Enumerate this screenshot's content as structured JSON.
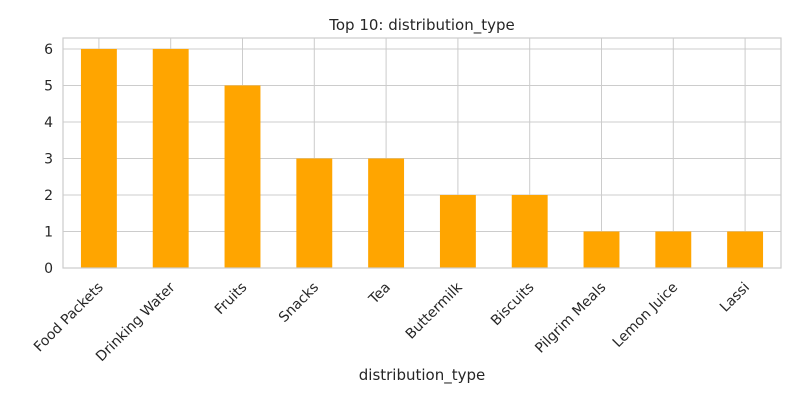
{
  "chart_data": {
    "type": "bar",
    "title": "Top 10: distribution_type",
    "xlabel": "distribution_type",
    "ylabel": "",
    "categories": [
      "Food Packets",
      "Drinking Water",
      "Fruits",
      "Snacks",
      "Tea",
      "Buttermilk",
      "Biscuits",
      "Pilgrim Meals",
      "Lemon Juice",
      "Lassi"
    ],
    "values": [
      6,
      6,
      5,
      3,
      3,
      2,
      2,
      1,
      1,
      1
    ],
    "ylim": [
      0,
      6.3
    ],
    "yticks": [
      "0",
      "1",
      "2",
      "3",
      "4",
      "5",
      "6"
    ],
    "grid": true,
    "bar_color": "#FFA500"
  }
}
